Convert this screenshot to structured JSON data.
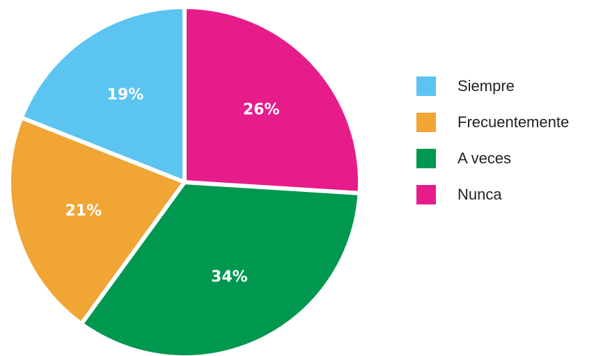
{
  "chart_data": {
    "type": "pie",
    "categories": [
      "Siempre",
      "Frecuentemente",
      "A veces",
      "Nunca"
    ],
    "values": [
      19,
      21,
      34,
      26
    ],
    "value_labels": [
      "19%",
      "21%",
      "34%",
      "26%"
    ],
    "colors": [
      "#5bc4f1",
      "#f0a535",
      "#00984f",
      "#e61c8b"
    ],
    "legend": "right"
  }
}
